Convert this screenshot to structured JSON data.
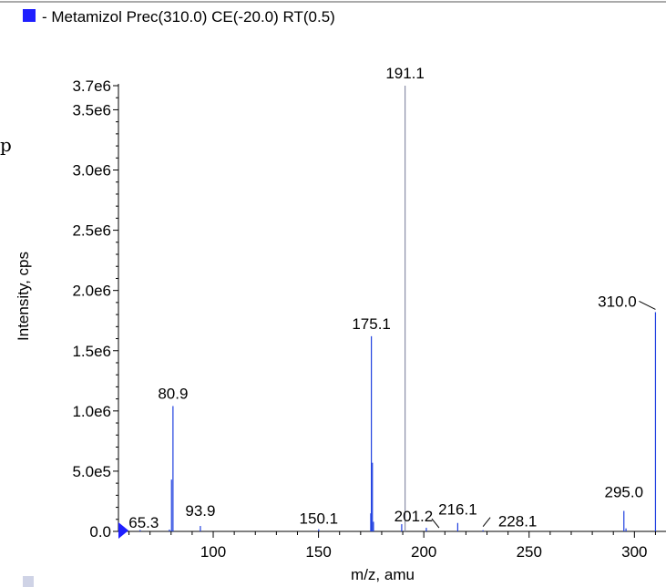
{
  "chart_data": {
    "type": "bar",
    "title": "- Metamizol  Prec(310.0) CE(-20.0) RT(0.5)",
    "xlabel": "m/z, amu",
    "ylabel": "Intensity, cps",
    "xlim": [
      55,
      315
    ],
    "ylim": [
      0,
      3800000
    ],
    "x_ticks": [
      100,
      150,
      200,
      250,
      300
    ],
    "x_tick_labels": [
      "100",
      "150",
      "200",
      "250",
      "300"
    ],
    "y_ticks": [
      0,
      500000,
      1000000,
      1500000,
      2000000,
      2500000,
      3000000,
      3500000,
      3700000
    ],
    "y_tick_labels": [
      "0.0",
      "5.0e5",
      "1.0e6",
      "1.5e6",
      "2.0e6",
      "2.5e6",
      "3.0e6",
      "3.5e6",
      "3.7e6"
    ],
    "series_color": "#1f3fe0",
    "peaks": [
      {
        "mz": 65.3,
        "intensity": 12000
      },
      {
        "mz": 79.2,
        "intensity": 15000
      },
      {
        "mz": 80.2,
        "intensity": 430000
      },
      {
        "mz": 80.9,
        "intensity": 1040000
      },
      {
        "mz": 93.9,
        "intensity": 45000
      },
      {
        "mz": 150.1,
        "intensity": 18000
      },
      {
        "mz": 174.8,
        "intensity": 150000
      },
      {
        "mz": 175.1,
        "intensity": 1620000
      },
      {
        "mz": 175.6,
        "intensity": 570000
      },
      {
        "mz": 176.1,
        "intensity": 80000
      },
      {
        "mz": 189.5,
        "intensity": 60000
      },
      {
        "mz": 191.1,
        "intensity": 3700000
      },
      {
        "mz": 201.2,
        "intensity": 30000
      },
      {
        "mz": 216.1,
        "intensity": 70000
      },
      {
        "mz": 228.1,
        "intensity": 10000
      },
      {
        "mz": 295.0,
        "intensity": 170000
      },
      {
        "mz": 296.0,
        "intensity": 25000
      },
      {
        "mz": 310.0,
        "intensity": 1820000
      }
    ],
    "peak_labels": [
      {
        "text": "65.3",
        "mz": 65.3
      },
      {
        "text": "80.9",
        "mz": 80.9
      },
      {
        "text": "93.9",
        "mz": 93.9
      },
      {
        "text": "150.1",
        "mz": 150.1
      },
      {
        "text": "175.1",
        "mz": 175.1
      },
      {
        "text": "191.1",
        "mz": 191.1
      },
      {
        "text": "201.2",
        "mz": 201.2
      },
      {
        "text": "216.1",
        "mz": 216.1
      },
      {
        "text": "228.1",
        "mz": 228.1
      },
      {
        "text": "295.0",
        "mz": 295.0
      },
      {
        "text": "310.0",
        "mz": 310.0
      }
    ],
    "legend_color": "#1f1fff",
    "edge_glyph": "p"
  }
}
